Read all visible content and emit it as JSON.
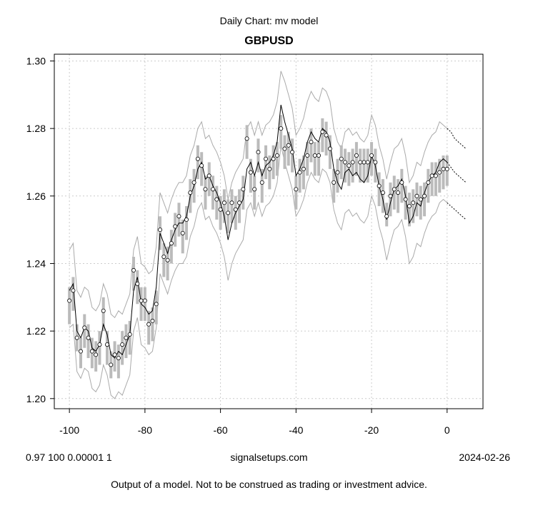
{
  "supertitle": "Daily Chart: mv model",
  "footer": {
    "left": "0.97 100 0.00001 1",
    "center": "signalsetups.com",
    "right": "2024-02-26"
  },
  "disclaimer": "Output of a model.  Not to be construed as trading or investment advice.",
  "chart_data": {
    "type": "line",
    "title": "GBPUSD",
    "xlabel": "",
    "ylabel": "",
    "xlim": [
      -104,
      9.5
    ],
    "ylim": [
      1.197,
      1.302
    ],
    "x_ticks": [
      -100,
      -80,
      -60,
      -40,
      -20,
      0
    ],
    "y_ticks": [
      1.2,
      1.22,
      1.24,
      1.26,
      1.28,
      1.3
    ],
    "x_tick_labels": [
      "-100",
      "-80",
      "-60",
      "-40",
      "-20",
      "0"
    ],
    "y_tick_labels": [
      "1.20",
      "1.22",
      "1.24",
      "1.26",
      "1.28",
      "1.30"
    ],
    "grid": true,
    "colors": {
      "model": "#000000",
      "band": "#aaaaaa",
      "range_bar": "#bbbbbb",
      "grid": "#cccccc"
    },
    "x": [
      -100,
      -99,
      -98,
      -97,
      -96,
      -95,
      -94,
      -93,
      -92,
      -91,
      -90,
      -89,
      -88,
      -87,
      -86,
      -85,
      -84,
      -83,
      -82,
      -81,
      -80,
      -79,
      -78,
      -77,
      -76,
      -75,
      -74,
      -73,
      -72,
      -71,
      -70,
      -69,
      -68,
      -67,
      -66,
      -65,
      -64,
      -63,
      -62,
      -61,
      -60,
      -59,
      -58,
      -57,
      -56,
      -55,
      -54,
      -53,
      -52,
      -51,
      -50,
      -49,
      -48,
      -47,
      -46,
      -45,
      -44,
      -43,
      -42,
      -41,
      -40,
      -39,
      -38,
      -37,
      -36,
      -35,
      -34,
      -33,
      -32,
      -31,
      -30,
      -29,
      -28,
      -27,
      -26,
      -25,
      -24,
      -23,
      -22,
      -21,
      -20,
      -19,
      -18,
      -17,
      -16,
      -15,
      -14,
      -13,
      -12,
      -11,
      -10,
      -9,
      -8,
      -7,
      -6,
      -5,
      -4,
      -3,
      -2,
      -1,
      0
    ],
    "series": [
      {
        "role": "close",
        "values": [
          1.229,
          1.232,
          1.218,
          1.214,
          1.221,
          1.218,
          1.214,
          1.213,
          1.216,
          1.226,
          1.216,
          1.21,
          1.213,
          1.212,
          1.216,
          1.218,
          1.219,
          1.238,
          1.234,
          1.229,
          1.229,
          1.222,
          1.223,
          1.228,
          1.25,
          1.242,
          1.241,
          1.246,
          1.251,
          1.254,
          1.249,
          1.253,
          1.261,
          1.264,
          1.271,
          1.269,
          1.262,
          1.266,
          1.262,
          1.259,
          1.256,
          1.258,
          1.255,
          1.258,
          1.256,
          1.258,
          1.262,
          1.277,
          1.267,
          1.262,
          1.273,
          1.264,
          1.271,
          1.268,
          1.271,
          1.272,
          1.28,
          1.274,
          1.275,
          1.273,
          1.262,
          1.267,
          1.268,
          1.272,
          1.276,
          1.272,
          1.272,
          1.279,
          1.278,
          1.274,
          1.264,
          1.267,
          1.271,
          1.27,
          1.269,
          1.27,
          1.272,
          1.27,
          1.27,
          1.27,
          1.272,
          1.27,
          1.263,
          1.261,
          1.254,
          1.26,
          1.262,
          1.261,
          1.264,
          1.259,
          1.257,
          1.258,
          1.26,
          1.259,
          1.26,
          1.264,
          1.266,
          1.266,
          1.267,
          1.268,
          1.268
        ]
      },
      {
        "role": "model",
        "values": [
          1.232,
          1.234,
          1.22,
          1.218,
          1.221,
          1.22,
          1.215,
          1.214,
          1.216,
          1.222,
          1.219,
          1.213,
          1.212,
          1.214,
          1.213,
          1.216,
          1.219,
          1.232,
          1.236,
          1.228,
          1.227,
          1.225,
          1.226,
          1.233,
          1.249,
          1.246,
          1.243,
          1.247,
          1.25,
          1.252,
          1.252,
          1.254,
          1.26,
          1.263,
          1.268,
          1.27,
          1.265,
          1.266,
          1.263,
          1.261,
          1.258,
          1.254,
          1.247,
          1.252,
          1.255,
          1.257,
          1.259,
          1.268,
          1.27,
          1.266,
          1.27,
          1.266,
          1.269,
          1.27,
          1.272,
          1.276,
          1.287,
          1.282,
          1.278,
          1.274,
          1.266,
          1.268,
          1.271,
          1.276,
          1.279,
          1.277,
          1.276,
          1.28,
          1.279,
          1.276,
          1.268,
          1.264,
          1.262,
          1.267,
          1.268,
          1.266,
          1.267,
          1.265,
          1.264,
          1.266,
          1.272,
          1.269,
          1.263,
          1.259,
          1.253,
          1.258,
          1.262,
          1.263,
          1.265,
          1.26,
          1.252,
          1.254,
          1.258,
          1.257,
          1.261,
          1.264,
          1.266,
          1.267,
          1.27,
          1.271,
          1.27
        ]
      },
      {
        "role": "upper_band",
        "values": [
          1.244,
          1.246,
          1.232,
          1.23,
          1.233,
          1.232,
          1.227,
          1.226,
          1.228,
          1.234,
          1.231,
          1.225,
          1.224,
          1.226,
          1.225,
          1.228,
          1.231,
          1.244,
          1.248,
          1.24,
          1.239,
          1.237,
          1.238,
          1.245,
          1.261,
          1.258,
          1.255,
          1.259,
          1.262,
          1.264,
          1.264,
          1.266,
          1.272,
          1.275,
          1.28,
          1.282,
          1.277,
          1.278,
          1.275,
          1.273,
          1.27,
          1.266,
          1.259,
          1.264,
          1.267,
          1.269,
          1.271,
          1.28,
          1.282,
          1.278,
          1.282,
          1.278,
          1.281,
          1.282,
          1.284,
          1.288,
          1.297,
          1.294,
          1.29,
          1.286,
          1.278,
          1.28,
          1.283,
          1.288,
          1.291,
          1.289,
          1.288,
          1.292,
          1.291,
          1.288,
          1.28,
          1.276,
          1.274,
          1.279,
          1.28,
          1.278,
          1.279,
          1.277,
          1.276,
          1.278,
          1.284,
          1.281,
          1.275,
          1.271,
          1.265,
          1.27,
          1.274,
          1.275,
          1.277,
          1.272,
          1.264,
          1.266,
          1.27,
          1.269,
          1.273,
          1.276,
          1.278,
          1.279,
          1.282,
          1.281,
          1.28
        ]
      },
      {
        "role": "lower_band",
        "values": [
          1.221,
          1.222,
          1.208,
          1.206,
          1.209,
          1.208,
          1.203,
          1.202,
          1.204,
          1.21,
          1.207,
          1.201,
          1.2,
          1.202,
          1.201,
          1.204,
          1.207,
          1.22,
          1.224,
          1.216,
          1.215,
          1.213,
          1.214,
          1.221,
          1.237,
          1.234,
          1.231,
          1.235,
          1.238,
          1.24,
          1.24,
          1.242,
          1.248,
          1.251,
          1.256,
          1.258,
          1.253,
          1.254,
          1.251,
          1.249,
          1.246,
          1.242,
          1.235,
          1.24,
          1.243,
          1.245,
          1.247,
          1.256,
          1.258,
          1.254,
          1.258,
          1.254,
          1.257,
          1.258,
          1.26,
          1.264,
          1.275,
          1.27,
          1.266,
          1.262,
          1.254,
          1.256,
          1.259,
          1.264,
          1.267,
          1.265,
          1.264,
          1.268,
          1.267,
          1.264,
          1.256,
          1.252,
          1.25,
          1.255,
          1.256,
          1.254,
          1.255,
          1.253,
          1.252,
          1.254,
          1.26,
          1.257,
          1.251,
          1.247,
          1.241,
          1.246,
          1.25,
          1.251,
          1.253,
          1.248,
          1.24,
          1.242,
          1.246,
          1.245,
          1.249,
          1.252,
          1.254,
          1.255,
          1.258,
          1.259,
          1.258
        ]
      }
    ],
    "daily_range": {
      "lows": [
        1.222,
        1.226,
        1.214,
        1.209,
        1.215,
        1.212,
        1.209,
        1.208,
        1.21,
        1.22,
        1.21,
        1.206,
        1.208,
        1.206,
        1.21,
        1.212,
        1.213,
        1.232,
        1.228,
        1.223,
        1.223,
        1.216,
        1.217,
        1.222,
        1.244,
        1.236,
        1.235,
        1.24,
        1.245,
        1.248,
        1.243,
        1.247,
        1.255,
        1.258,
        1.265,
        1.263,
        1.256,
        1.26,
        1.256,
        1.253,
        1.25,
        1.252,
        1.249,
        1.252,
        1.25,
        1.252,
        1.256,
        1.271,
        1.261,
        1.256,
        1.267,
        1.258,
        1.265,
        1.262,
        1.265,
        1.266,
        1.274,
        1.268,
        1.269,
        1.267,
        1.256,
        1.261,
        1.262,
        1.266,
        1.27,
        1.266,
        1.266,
        1.273,
        1.272,
        1.268,
        1.258,
        1.261,
        1.265,
        1.264,
        1.263,
        1.264,
        1.266,
        1.264,
        1.264,
        1.264,
        1.266,
        1.264,
        1.257,
        1.255,
        1.251,
        1.254,
        1.256,
        1.255,
        1.258,
        1.253,
        1.251,
        1.252,
        1.254,
        1.253,
        1.254,
        1.258,
        1.26,
        1.26,
        1.261,
        1.262,
        1.263
      ],
      "highs": [
        1.233,
        1.236,
        1.222,
        1.218,
        1.225,
        1.222,
        1.218,
        1.217,
        1.22,
        1.23,
        1.22,
        1.214,
        1.217,
        1.216,
        1.22,
        1.222,
        1.223,
        1.242,
        1.238,
        1.233,
        1.233,
        1.226,
        1.227,
        1.232,
        1.254,
        1.246,
        1.245,
        1.25,
        1.255,
        1.258,
        1.253,
        1.257,
        1.265,
        1.268,
        1.275,
        1.273,
        1.266,
        1.27,
        1.266,
        1.263,
        1.26,
        1.262,
        1.259,
        1.262,
        1.26,
        1.262,
        1.266,
        1.281,
        1.271,
        1.266,
        1.277,
        1.268,
        1.275,
        1.272,
        1.275,
        1.276,
        1.284,
        1.278,
        1.279,
        1.277,
        1.266,
        1.271,
        1.272,
        1.276,
        1.28,
        1.276,
        1.276,
        1.283,
        1.282,
        1.278,
        1.268,
        1.271,
        1.275,
        1.274,
        1.273,
        1.274,
        1.276,
        1.274,
        1.274,
        1.274,
        1.276,
        1.274,
        1.267,
        1.265,
        1.258,
        1.264,
        1.266,
        1.265,
        1.268,
        1.263,
        1.261,
        1.262,
        1.264,
        1.263,
        1.264,
        1.268,
        1.27,
        1.27,
        1.271,
        1.272,
        1.272
      ]
    },
    "forecast": {
      "x": [
        0,
        1,
        2,
        3,
        4,
        5
      ],
      "middle": [
        1.27,
        1.2685,
        1.267,
        1.266,
        1.265,
        1.264
      ],
      "upper": [
        1.28,
        1.279,
        1.277,
        1.276,
        1.275,
        1.274
      ],
      "lower": [
        1.258,
        1.257,
        1.256,
        1.255,
        1.254,
        1.253
      ]
    }
  }
}
